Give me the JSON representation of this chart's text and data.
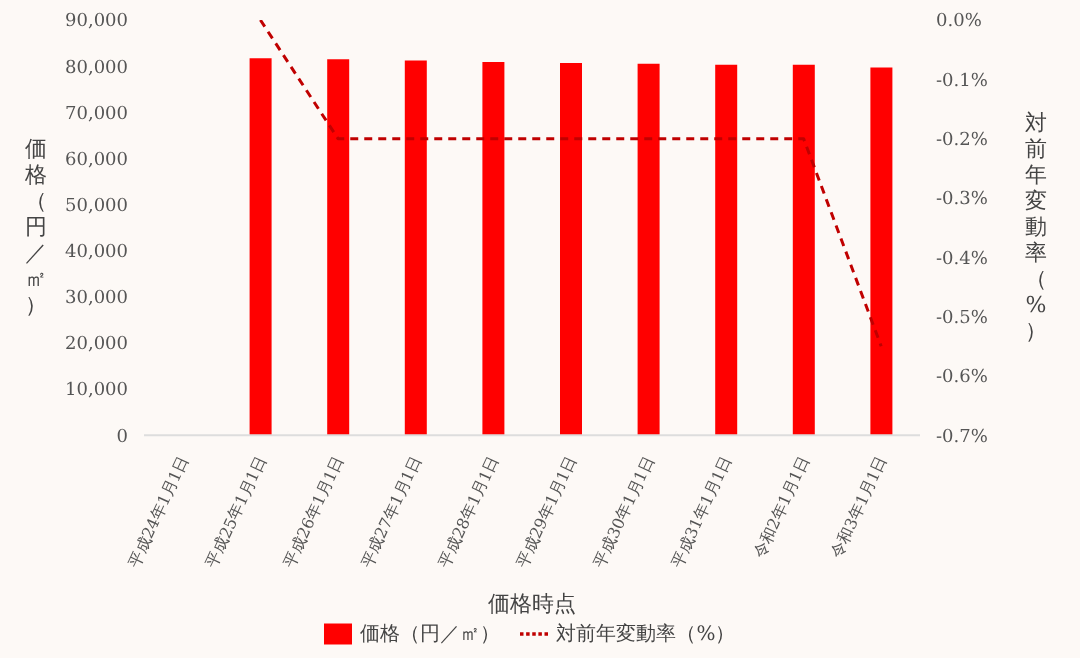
{
  "chart_data": {
    "type": "bar",
    "xlabel": "価格時点",
    "ylabel": "価格（円／㎡）",
    "y2label": "対前年変動率（%）",
    "categories": [
      "平成24年1月1日",
      "平成25年1月1日",
      "平成26年1月1日",
      "平成27年1月1日",
      "平成28年1月1日",
      "平成29年1月1日",
      "平成30年1月1日",
      "平成31年1月1日",
      "令和2年1月1日",
      "令和3年1月1日"
    ],
    "series": [
      {
        "name": "価格（円／㎡）",
        "color": "#ff0000",
        "values": [
          null,
          81700,
          81500,
          81200,
          80900,
          80700,
          80500,
          80300,
          80300,
          79700
        ]
      },
      {
        "name": "対前年変動率（%）",
        "type": "line",
        "axis": "y2",
        "color": "#c00000",
        "line_style": "dashed",
        "marker": "none",
        "values": [
          null,
          0.0,
          -0.2,
          -0.2,
          -0.2,
          -0.2,
          -0.2,
          -0.2,
          -0.2,
          -0.55
        ]
      }
    ],
    "ylim": [
      0,
      90000
    ],
    "yticks": [
      0,
      {
        "value": 10000,
        "label": "10,000"
      },
      {
        "value": 20000,
        "label": "20,000"
      },
      {
        "value": 30000,
        "label": "30,000"
      },
      {
        "value": 40000,
        "label": "40,000"
      },
      {
        "value": 50000,
        "label": "50,000"
      },
      {
        "value": 60000,
        "label": "60,000"
      },
      {
        "value": 70000,
        "label": "70,000"
      },
      {
        "value": 80000,
        "label": "80,000"
      },
      {
        "value": 90000,
        "label": "90,000"
      }
    ],
    "y2lim": [
      -0.7,
      0
    ],
    "y2ticks": [
      {
        "value": -0.7,
        "label": "-0.7%"
      },
      {
        "value": -0.6,
        "label": "-0.6%"
      },
      {
        "value": -0.5,
        "label": "-0.5%"
      },
      {
        "value": -0.4,
        "label": "-0.4%"
      },
      {
        "value": -0.3,
        "label": "-0.3%"
      },
      {
        "value": -0.2,
        "label": "-0.2%"
      },
      {
        "value": -0.1,
        "label": "-0.1%"
      },
      {
        "value": 0,
        "label": "0.0%"
      }
    ],
    "grid": false,
    "legend": "bottom"
  }
}
